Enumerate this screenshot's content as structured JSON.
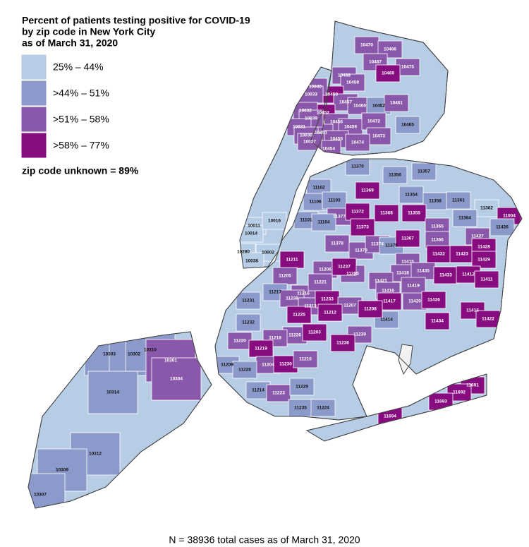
{
  "title_lines": [
    "Percent of patients testing positive for COVID-19",
    "by zip code in New York City",
    "as of March 31, 2020"
  ],
  "legend": [
    {
      "label": "25% – 44%",
      "color": "#b7cde6"
    },
    {
      "label": ">44% – 51%",
      "color": "#8b9acb"
    },
    {
      "label": ">51% – 58%",
      "color": "#8a58aa"
    },
    {
      "label": ">58% – 77%",
      "color": "#870c80"
    }
  ],
  "unknown_note": "zip code unknown = 89%",
  "footnote": "N = 38936 total cases as of March 31, 2020",
  "zips": [
    {
      "label": "10470",
      "bin": 2
    },
    {
      "label": "10466",
      "bin": 2
    },
    {
      "label": "10467",
      "bin": 2
    },
    {
      "label": "10475",
      "bin": 2
    },
    {
      "label": "10468",
      "bin": 2
    },
    {
      "label": "10458",
      "bin": 2
    },
    {
      "label": "10469",
      "bin": 3
    },
    {
      "label": "10453",
      "bin": 3
    },
    {
      "label": "10457",
      "bin": 2
    },
    {
      "label": "10460",
      "bin": 2
    },
    {
      "label": "10462",
      "bin": 1
    },
    {
      "label": "10461",
      "bin": 2
    },
    {
      "label": "10452",
      "bin": 3
    },
    {
      "label": "10456",
      "bin": 2
    },
    {
      "label": "10459",
      "bin": 2
    },
    {
      "label": "10472",
      "bin": 2
    },
    {
      "label": "10465",
      "bin": 1
    },
    {
      "label": "10451",
      "bin": 2
    },
    {
      "label": "10455",
      "bin": 2
    },
    {
      "label": "10473",
      "bin": 2
    },
    {
      "label": "10474",
      "bin": 2
    },
    {
      "label": "10454",
      "bin": 2
    },
    {
      "label": "10040",
      "bin": 2
    },
    {
      "label": "10033",
      "bin": 2
    },
    {
      "label": "10032",
      "bin": 2
    },
    {
      "label": "10039",
      "bin": 2
    },
    {
      "label": "10031",
      "bin": 2
    },
    {
      "label": "10030",
      "bin": 2
    },
    {
      "label": "10027",
      "bin": 2
    },
    {
      "label": "10011",
      "bin": 0
    },
    {
      "label": "10014",
      "bin": 0
    },
    {
      "label": "10016",
      "bin": 0
    },
    {
      "label": "10002",
      "bin": 0
    },
    {
      "label": "10280",
      "bin": 0
    },
    {
      "label": "10038",
      "bin": 0
    },
    {
      "label": "11370",
      "bin": 1
    },
    {
      "label": "11356",
      "bin": 1
    },
    {
      "label": "11357",
      "bin": 1
    },
    {
      "label": "11369",
      "bin": 3
    },
    {
      "label": "11102",
      "bin": 1
    },
    {
      "label": "11106",
      "bin": 1
    },
    {
      "label": "11103",
      "bin": 1
    },
    {
      "label": "11354",
      "bin": 1
    },
    {
      "label": "11358",
      "bin": 1
    },
    {
      "label": "11361",
      "bin": 1
    },
    {
      "label": "11362",
      "bin": 0
    },
    {
      "label": "11004",
      "bin": 3
    },
    {
      "label": "11377",
      "bin": 2
    },
    {
      "label": "11372",
      "bin": 3
    },
    {
      "label": "11368",
      "bin": 3
    },
    {
      "label": "11355",
      "bin": 3
    },
    {
      "label": "11101",
      "bin": 1
    },
    {
      "label": "11104",
      "bin": 1
    },
    {
      "label": "11373",
      "bin": 3
    },
    {
      "label": "11365",
      "bin": 2
    },
    {
      "label": "11364",
      "bin": 1
    },
    {
      "label": "11426",
      "bin": 1
    },
    {
      "label": "11427",
      "bin": 2
    },
    {
      "label": "11378",
      "bin": 2
    },
    {
      "label": "11379",
      "bin": 2
    },
    {
      "label": "11374",
      "bin": 2
    },
    {
      "label": "11375",
      "bin": 1
    },
    {
      "label": "11367",
      "bin": 3
    },
    {
      "label": "11366",
      "bin": 2
    },
    {
      "label": "11432",
      "bin": 3
    },
    {
      "label": "11423",
      "bin": 3
    },
    {
      "label": "11428",
      "bin": 3
    },
    {
      "label": "11429",
      "bin": 3
    },
    {
      "label": "11385",
      "bin": 2
    },
    {
      "label": "11415",
      "bin": 2
    },
    {
      "label": "11418",
      "bin": 2
    },
    {
      "label": "11435",
      "bin": 2
    },
    {
      "label": "11433",
      "bin": 3
    },
    {
      "label": "11412",
      "bin": 3
    },
    {
      "label": "11411",
      "bin": 3
    },
    {
      "label": "11421",
      "bin": 2
    },
    {
      "label": "11416",
      "bin": 2
    },
    {
      "label": "11419",
      "bin": 2
    },
    {
      "label": "11420",
      "bin": 2
    },
    {
      "label": "11417",
      "bin": 3
    },
    {
      "label": "11436",
      "bin": 3
    },
    {
      "label": "11413",
      "bin": 3
    },
    {
      "label": "11422",
      "bin": 3
    },
    {
      "label": "11434",
      "bin": 3
    },
    {
      "label": "11414",
      "bin": 1
    },
    {
      "label": "11691",
      "bin": 3
    },
    {
      "label": "11692",
      "bin": 3
    },
    {
      "label": "11693",
      "bin": 3
    },
    {
      "label": "11694",
      "bin": 3
    },
    {
      "label": "11211",
      "bin": 3
    },
    {
      "label": "11206",
      "bin": 2
    },
    {
      "label": "11237",
      "bin": 3
    },
    {
      "label": "11205",
      "bin": 2
    },
    {
      "label": "11216",
      "bin": 2
    },
    {
      "label": "11221",
      "bin": 2
    },
    {
      "label": "11217",
      "bin": 1
    },
    {
      "label": "11238",
      "bin": 2
    },
    {
      "label": "11231",
      "bin": 1
    },
    {
      "label": "11213",
      "bin": 2
    },
    {
      "label": "11233",
      "bin": 3
    },
    {
      "label": "11207",
      "bin": 2
    },
    {
      "label": "11208",
      "bin": 3
    },
    {
      "label": "11212",
      "bin": 3
    },
    {
      "label": "11232",
      "bin": 1
    },
    {
      "label": "11225",
      "bin": 3
    },
    {
      "label": "11226",
      "bin": 2
    },
    {
      "label": "11203",
      "bin": 3
    },
    {
      "label": "11239",
      "bin": 2
    },
    {
      "label": "11236",
      "bin": 3
    },
    {
      "label": "11218",
      "bin": 2
    },
    {
      "label": "11220",
      "bin": 2
    },
    {
      "label": "11219",
      "bin": 3
    },
    {
      "label": "11204",
      "bin": 2
    },
    {
      "label": "11230",
      "bin": 3
    },
    {
      "label": "11210",
      "bin": 2
    },
    {
      "label": "11209",
      "bin": 1
    },
    {
      "label": "11228",
      "bin": 1
    },
    {
      "label": "11214",
      "bin": 1
    },
    {
      "label": "11223",
      "bin": 2
    },
    {
      "label": "11229",
      "bin": 1
    },
    {
      "label": "11235",
      "bin": 1
    },
    {
      "label": "11224",
      "bin": 1
    },
    {
      "label": "10303",
      "bin": 1
    },
    {
      "label": "10302",
      "bin": 1
    },
    {
      "label": "10310",
      "bin": 1
    },
    {
      "label": "10301",
      "bin": 2
    },
    {
      "label": "10304",
      "bin": 2
    },
    {
      "label": "10314",
      "bin": 1
    },
    {
      "label": "10312",
      "bin": 1
    },
    {
      "label": "10309",
      "bin": 1
    },
    {
      "label": "10307",
      "bin": 1
    }
  ]
}
